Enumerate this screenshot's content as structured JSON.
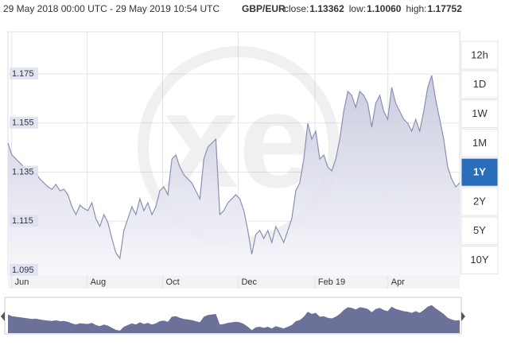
{
  "header": {
    "range": "29 May 2018 00:00 UTC - 29 May 2019 10:54 UTC",
    "pair": "GBP/EUR",
    "stats": [
      {
        "label": "close:",
        "value": "1.13362"
      },
      {
        "label": "low:",
        "value": "1.10060"
      },
      {
        "label": "high:",
        "value": "1.17752"
      }
    ]
  },
  "watermark": "xe",
  "buttons": [
    {
      "label": "12h"
    },
    {
      "label": "1D"
    },
    {
      "label": "1W"
    },
    {
      "label": "1M"
    },
    {
      "label": "1Y",
      "active": true
    },
    {
      "label": "2Y"
    },
    {
      "label": "5Y"
    },
    {
      "label": "10Y"
    }
  ],
  "chart_data": {
    "type": "area",
    "color": "#8a90b4",
    "fill": "#c9cce0",
    "xlim": [
      0,
      365
    ],
    "xticks": [
      {
        "value": 3,
        "label": "Jun"
      },
      {
        "value": 64,
        "label": "Aug"
      },
      {
        "value": 125,
        "label": "Oct"
      },
      {
        "value": 186,
        "label": "Dec"
      },
      {
        "value": 248,
        "label": "Feb 19"
      },
      {
        "value": 307,
        "label": "Apr"
      }
    ],
    "ylim": [
      1.0927,
      1.1922
    ],
    "yticks": [
      1.095,
      1.115,
      1.135,
      1.155,
      1.175
    ],
    "grid": true,
    "values": [
      1.1468,
      1.142,
      1.1403,
      1.1387,
      1.1371,
      1.1355,
      1.1339,
      1.1345,
      1.1322,
      1.1306,
      1.129,
      1.128,
      1.13,
      1.1274,
      1.128,
      1.1258,
      1.1209,
      1.1177,
      1.1215,
      1.1202,
      1.1193,
      1.1225,
      1.116,
      1.1128,
      1.1177,
      1.1144,
      1.1079,
      1.1021,
      1.0998,
      1.1112,
      1.116,
      1.1209,
      1.1177,
      1.1241,
      1.1193,
      1.1225,
      1.1177,
      1.1209,
      1.1274,
      1.129,
      1.1258,
      1.1403,
      1.142,
      1.1371,
      1.1339,
      1.1322,
      1.1306,
      1.1274,
      1.1241,
      1.1403,
      1.1452,
      1.1468,
      1.1484,
      1.1177,
      1.1193,
      1.1225,
      1.1241,
      1.1258,
      1.1241,
      1.1193,
      1.1112,
      1.1015,
      1.1096,
      1.1112,
      1.1079,
      1.1112,
      1.1063,
      1.1128,
      1.1096,
      1.1063,
      1.1112,
      1.116,
      1.1274,
      1.1306,
      1.1403,
      1.1549,
      1.1484,
      1.1517,
      1.1403,
      1.142,
      1.1371,
      1.1355,
      1.1403,
      1.1484,
      1.1598,
      1.1679,
      1.1663,
      1.1614,
      1.1679,
      1.1663,
      1.163,
      1.1533,
      1.163,
      1.1663,
      1.1598,
      1.1565,
      1.1695,
      1.163,
      1.1598,
      1.1565,
      1.1549,
      1.1517,
      1.1565,
      1.1517,
      1.1598,
      1.1695,
      1.1744,
      1.1646,
      1.1565,
      1.1484,
      1.1371,
      1.1322,
      1.129,
      1.1306
    ]
  }
}
